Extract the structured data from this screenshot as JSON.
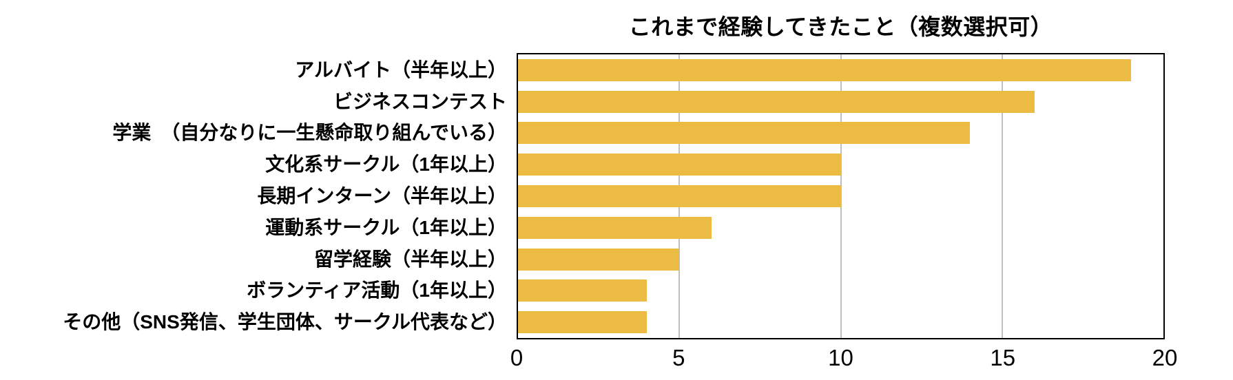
{
  "chart_data": {
    "type": "bar",
    "orientation": "horizontal",
    "title": "これまで経験してきたこと（複数選択可）",
    "categories": [
      "アルバイト（半年以上）",
      "ビジネスコンテスト",
      "学業　（自分なりに一生懸命取り組んでいる）",
      "文化系サークル（1年以上）",
      "長期インターン（半年以上）",
      "運動系サークル（1年以上）",
      "留学経験（半年以上）",
      "ボランティア活動（1年以上）",
      "その他（SNS発信、学生団体、サークル代表など）"
    ],
    "values": [
      19,
      16,
      14,
      10,
      10,
      6,
      5,
      4,
      4
    ],
    "xlabel": "",
    "ylabel": "",
    "xlim": [
      0,
      20
    ],
    "xticks": [
      0,
      5,
      10,
      15,
      20
    ],
    "grid": "vertical",
    "legend": "none",
    "colors": {
      "bar": "#ECBB43",
      "gridline": "#BFBFBF",
      "plot_border": "#000000",
      "background": "#FFFFFF",
      "text": "#000000"
    }
  }
}
